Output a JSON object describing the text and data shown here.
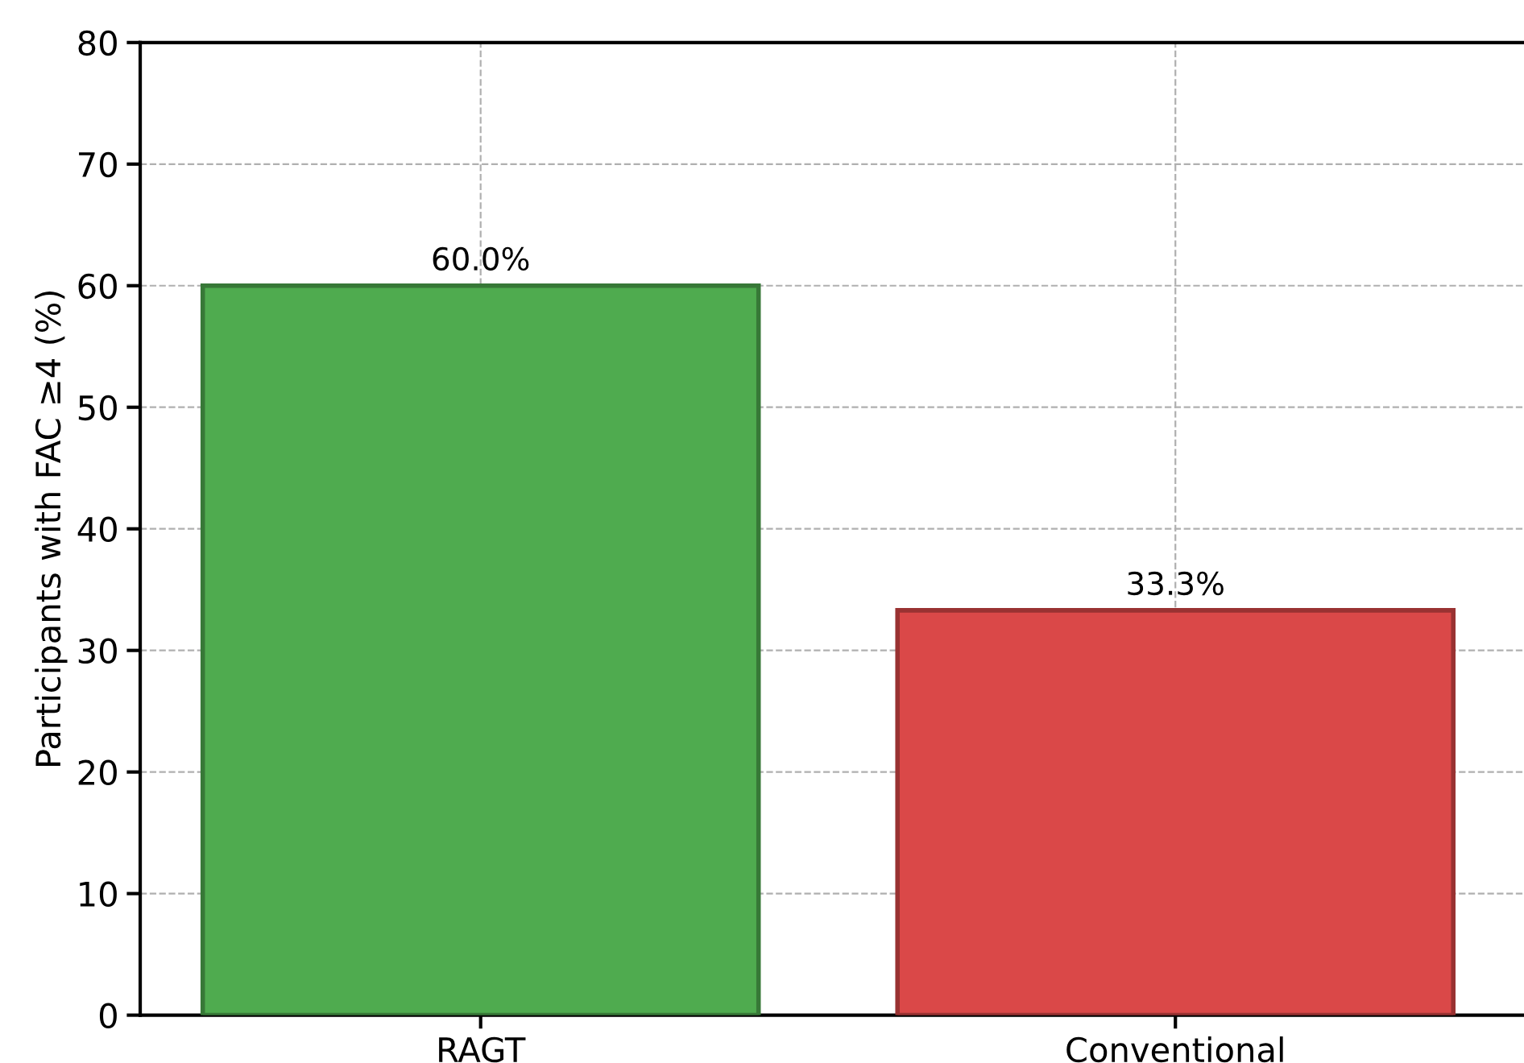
{
  "chart_data": {
    "type": "bar",
    "ylabel": "Participants with FAC ≥4 (%)",
    "categories": [
      "RAGT",
      "Conventional"
    ],
    "values": [
      60.0,
      33.3
    ],
    "colors": [
      "#4fab4f",
      "#da4848"
    ],
    "value_labels": [
      "60.0%",
      "33.3%"
    ],
    "ylim": [
      0,
      80
    ],
    "yticks": [
      0,
      10,
      20,
      30,
      40,
      50,
      60,
      70,
      80
    ],
    "grid": true
  }
}
